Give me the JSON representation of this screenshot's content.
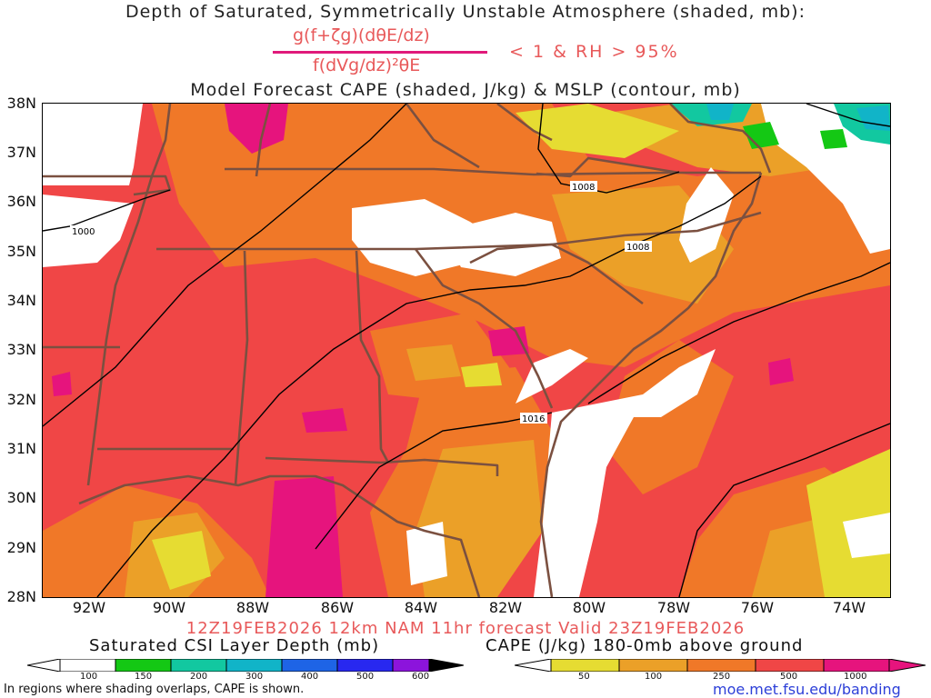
{
  "title_line1": "Depth of Saturated, Symmetrically Unstable Atmosphere (shaded, mb):",
  "formula": {
    "numerator": "g(f+ζg)(dθE/dz)",
    "denominator": "f(dVg/dz)²θE",
    "condition": "< 1 & RH > 95%"
  },
  "title_line3": "Model Forecast CAPE (shaded, J/kg) & MSLP (contour, mb)",
  "lat_labels": [
    "38N",
    "37N",
    "36N",
    "35N",
    "34N",
    "33N",
    "32N",
    "31N",
    "30N",
    "29N",
    "28N"
  ],
  "lon_labels": [
    "92W",
    "90W",
    "88W",
    "86W",
    "84W",
    "82W",
    "80W",
    "78W",
    "76W",
    "74W"
  ],
  "isobar_labels": [
    "1000",
    "1008",
    "1008",
    "1016"
  ],
  "forecast_line": "12Z19FEB2026 12km NAM 11hr forecast Valid 23Z19FEB2026",
  "colorbar_left": {
    "title": "Saturated CSI Layer Depth (mb)",
    "ticks": [
      "100",
      "150",
      "200",
      "300",
      "400",
      "500",
      "600"
    ],
    "colors": [
      "#ffffff",
      "#14c814",
      "#12c8a0",
      "#11b4c8",
      "#1e64e6",
      "#2828f0",
      "#8c14dc",
      "#000000"
    ]
  },
  "colorbar_right": {
    "title": "CAPE (J/kg) 180-0mb above ground",
    "ticks": [
      "50",
      "100",
      "250",
      "500",
      "1000"
    ],
    "colors": [
      "#ffffff",
      "#e6dc32",
      "#eba028",
      "#f07828",
      "#f04646",
      "#e6147d"
    ]
  },
  "note": "In regions where shading overlaps, CAPE is shown.",
  "url": "moe.met.fsu.edu/banding",
  "colors": {
    "cape_50": "#e6dc32",
    "cape_100": "#eba028",
    "cape_250": "#f07828",
    "cape_500": "#f04646",
    "cape_1000": "#e6147d",
    "state_lines": "#7b5040",
    "isobar": "#000000",
    "title_red": "#e8595a"
  }
}
